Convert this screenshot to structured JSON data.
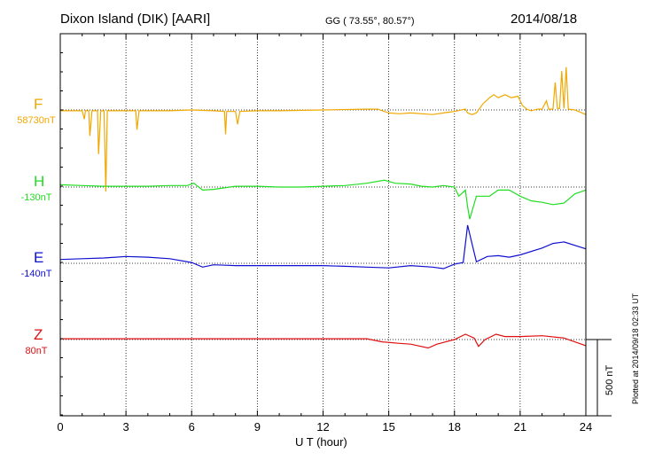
{
  "header": {
    "station": "Dixon Island (DIK)  [AARI]",
    "coords": "GG ( 73.55°,  80.57°)",
    "date": "2014/08/18"
  },
  "footer": {
    "plotted": "Plotted at 2014/09/18 02:33 UT",
    "scale_label": "500 nT"
  },
  "colors": {
    "F": "#f0a800",
    "H": "#22dd22",
    "E": "#1010d0",
    "Z": "#e01010"
  },
  "chart_data": {
    "type": "line",
    "xlabel": "U T (hour)",
    "xlim": [
      0,
      24
    ],
    "xticks": [
      "0",
      "3",
      "6",
      "9",
      "12",
      "15",
      "18",
      "21",
      "24"
    ],
    "scale_bar_nT": 500,
    "series": [
      {
        "name": "F",
        "baseline_label": "58730nT",
        "points": [
          [
            0,
            -5
          ],
          [
            1,
            -5
          ],
          [
            1.1,
            -60
          ],
          [
            1.15,
            -5
          ],
          [
            1.3,
            -5
          ],
          [
            1.35,
            -170
          ],
          [
            1.45,
            -5
          ],
          [
            1.7,
            -5
          ],
          [
            1.75,
            -290
          ],
          [
            1.85,
            -5
          ],
          [
            2.0,
            -5
          ],
          [
            2.08,
            -535
          ],
          [
            2.15,
            -5
          ],
          [
            2.3,
            -5
          ],
          [
            3.0,
            -5
          ],
          [
            3.45,
            -5
          ],
          [
            3.5,
            -130
          ],
          [
            3.6,
            -5
          ],
          [
            4,
            -5
          ],
          [
            5,
            -5
          ],
          [
            6,
            0
          ],
          [
            7,
            -5
          ],
          [
            7.5,
            -10
          ],
          [
            7.55,
            -160
          ],
          [
            7.6,
            -10
          ],
          [
            8,
            -10
          ],
          [
            8.1,
            -95
          ],
          [
            8.2,
            -10
          ],
          [
            9,
            -5
          ],
          [
            10,
            -5
          ],
          [
            12,
            0
          ],
          [
            14,
            5
          ],
          [
            14.5,
            5
          ],
          [
            15,
            -20
          ],
          [
            15.5,
            -25
          ],
          [
            16,
            -20
          ],
          [
            17,
            -30
          ],
          [
            17.5,
            -20
          ],
          [
            18,
            -10
          ],
          [
            18.5,
            5
          ],
          [
            18.6,
            -20
          ],
          [
            18.8,
            -30
          ],
          [
            19.0,
            -20
          ],
          [
            19.3,
            40
          ],
          [
            19.6,
            80
          ],
          [
            19.8,
            100
          ],
          [
            20,
            80
          ],
          [
            20.3,
            100
          ],
          [
            20.6,
            80
          ],
          [
            20.9,
            90
          ],
          [
            21.1,
            30
          ],
          [
            21.3,
            5
          ],
          [
            21.5,
            -5
          ],
          [
            21.8,
            5
          ],
          [
            22.0,
            5
          ],
          [
            22.2,
            60
          ],
          [
            22.3,
            5
          ],
          [
            22.5,
            5
          ],
          [
            22.6,
            180
          ],
          [
            22.7,
            10
          ],
          [
            22.8,
            10
          ],
          [
            22.9,
            255
          ],
          [
            23.0,
            10
          ],
          [
            23.1,
            280
          ],
          [
            23.2,
            5
          ],
          [
            23.5,
            0
          ],
          [
            24,
            -30
          ]
        ]
      },
      {
        "name": "H",
        "baseline_label": "-130nT",
        "points": [
          [
            0,
            15
          ],
          [
            1,
            10
          ],
          [
            2,
            5
          ],
          [
            3,
            5
          ],
          [
            4,
            5
          ],
          [
            5,
            10
          ],
          [
            5.8,
            10
          ],
          [
            6.1,
            25
          ],
          [
            6.5,
            -20
          ],
          [
            7,
            -15
          ],
          [
            8,
            5
          ],
          [
            9,
            5
          ],
          [
            10,
            0
          ],
          [
            11,
            0
          ],
          [
            12,
            5
          ],
          [
            13,
            10
          ],
          [
            14,
            25
          ],
          [
            14.8,
            45
          ],
          [
            15.3,
            25
          ],
          [
            16,
            20
          ],
          [
            16.5,
            5
          ],
          [
            17,
            0
          ],
          [
            17.5,
            10
          ],
          [
            18,
            0
          ],
          [
            18.2,
            -60
          ],
          [
            18.5,
            -20
          ],
          [
            18.6,
            -130
          ],
          [
            18.7,
            -210
          ],
          [
            19.0,
            -60
          ],
          [
            19.3,
            -60
          ],
          [
            19.6,
            -60
          ],
          [
            20,
            -20
          ],
          [
            20.5,
            -20
          ],
          [
            21,
            -60
          ],
          [
            21.5,
            -90
          ],
          [
            22,
            -100
          ],
          [
            22.5,
            -115
          ],
          [
            23,
            -105
          ],
          [
            23.5,
            -45
          ],
          [
            24,
            -20
          ]
        ]
      },
      {
        "name": "E",
        "baseline_label": "-140nT",
        "points": [
          [
            0,
            25
          ],
          [
            1,
            30
          ],
          [
            2,
            35
          ],
          [
            3,
            45
          ],
          [
            4,
            40
          ],
          [
            5,
            30
          ],
          [
            6,
            5
          ],
          [
            6.5,
            -25
          ],
          [
            7,
            -10
          ],
          [
            8,
            -15
          ],
          [
            9,
            -15
          ],
          [
            10,
            -15
          ],
          [
            11,
            -15
          ],
          [
            12,
            -15
          ],
          [
            13,
            -20
          ],
          [
            14,
            -25
          ],
          [
            15,
            -30
          ],
          [
            16,
            -15
          ],
          [
            17,
            -25
          ],
          [
            17.5,
            -35
          ],
          [
            18,
            -5
          ],
          [
            18.4,
            5
          ],
          [
            18.6,
            250
          ],
          [
            18.8,
            130
          ],
          [
            19.0,
            10
          ],
          [
            19.5,
            45
          ],
          [
            20,
            50
          ],
          [
            20.5,
            40
          ],
          [
            21,
            55
          ],
          [
            22,
            100
          ],
          [
            22.5,
            130
          ],
          [
            23,
            140
          ],
          [
            24,
            95
          ]
        ]
      },
      {
        "name": "Z",
        "baseline_label": "80nT",
        "points": [
          [
            0,
            5
          ],
          [
            2,
            5
          ],
          [
            4,
            5
          ],
          [
            6,
            5
          ],
          [
            8,
            5
          ],
          [
            10,
            5
          ],
          [
            12,
            5
          ],
          [
            13,
            5
          ],
          [
            14,
            5
          ],
          [
            14.7,
            -15
          ],
          [
            15.5,
            -25
          ],
          [
            16,
            -30
          ],
          [
            16.8,
            -55
          ],
          [
            17.2,
            -30
          ],
          [
            18,
            0
          ],
          [
            18.5,
            35
          ],
          [
            18.9,
            10
          ],
          [
            19.1,
            -45
          ],
          [
            19.4,
            0
          ],
          [
            19.9,
            35
          ],
          [
            20.3,
            20
          ],
          [
            21,
            20
          ],
          [
            22,
            25
          ],
          [
            23,
            10
          ],
          [
            24,
            -40
          ]
        ]
      }
    ]
  }
}
